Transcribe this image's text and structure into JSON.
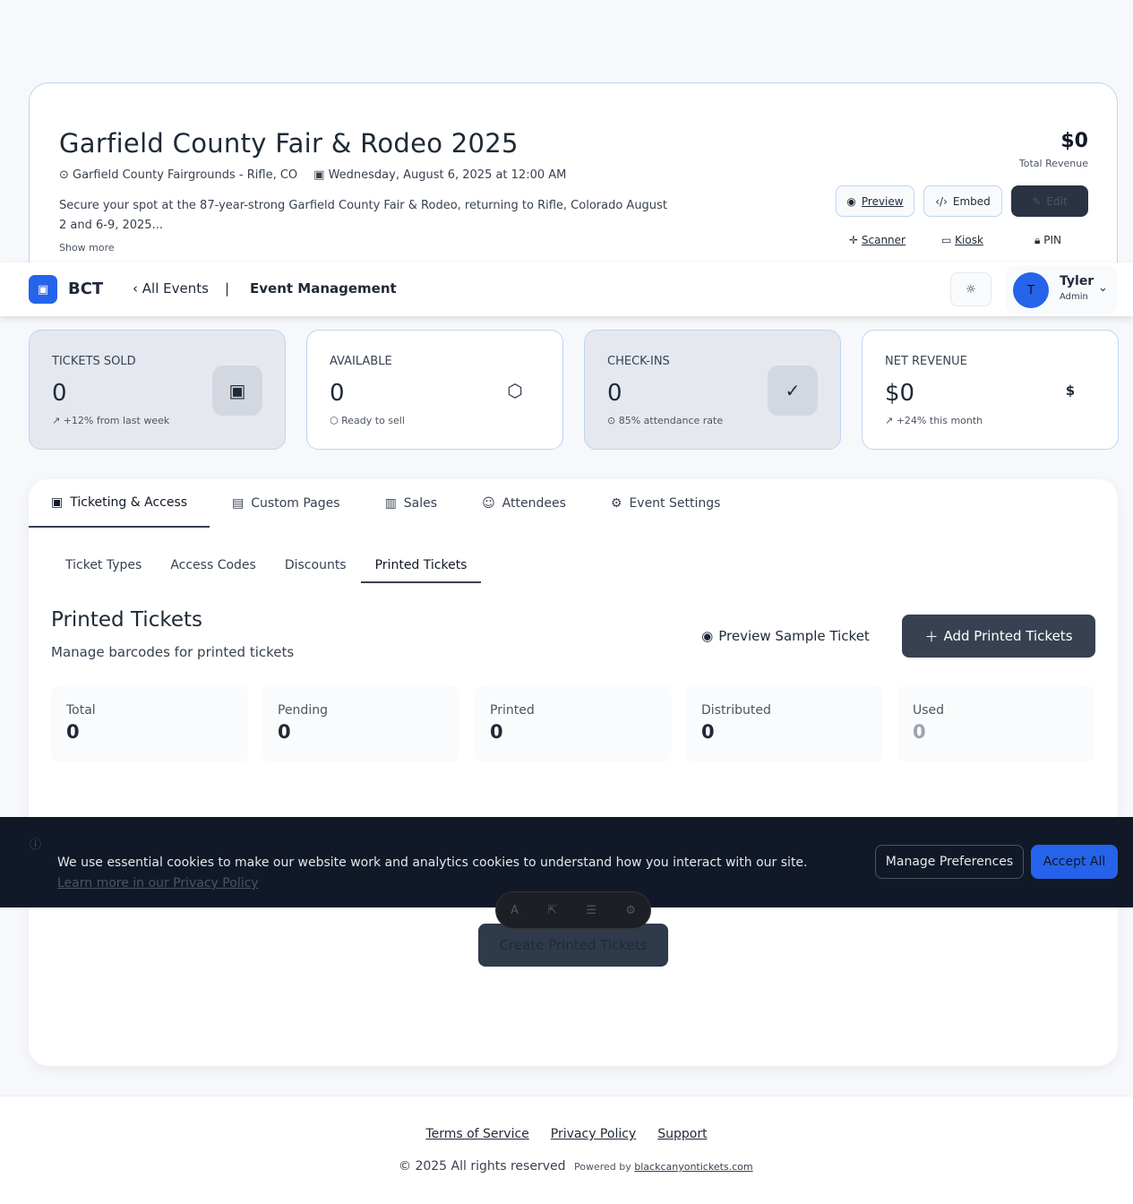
{
  "event": {
    "title": "Garfield County Fair & Rodeo 2025",
    "location": "Garfield County Fairgrounds - Rifle, CO",
    "date": "Wednesday, August 6, 2025 at 12:00 AM",
    "description": "Secure your spot at the 87-year-strong Garfield County Fair & Rodeo, returning to Rifle, Colorado August 2 and 6-9, 2025...",
    "show_more": "Show more",
    "revenue": "$0",
    "revenue_label": "Total Revenue",
    "preview": "Preview",
    "embed": "Embed",
    "edit": "Edit",
    "scanner": "Scanner",
    "kiosk": "Kiosk",
    "pin": "PIN"
  },
  "nav": {
    "brand": "BCT",
    "all_events": "All Events",
    "separator": "|",
    "page": "Event Management",
    "user_initial": "T",
    "user_name": "Tyler",
    "user_role": "Admin"
  },
  "cards": [
    {
      "label": "TICKETS SOLD",
      "value": "0",
      "sub": "+12% from last week",
      "icon": "ticket-icon"
    },
    {
      "label": "AVAILABLE",
      "value": "0",
      "sub": "Ready to sell",
      "icon": "box-icon"
    },
    {
      "label": "CHECK-INS",
      "value": "0",
      "sub": "85% attendance rate",
      "icon": "check-circle-icon"
    },
    {
      "label": "NET REVENUE",
      "value": "$0",
      "sub": "+24% this month",
      "icon": "dollar-icon"
    }
  ],
  "tabs": [
    "Ticketing & Access",
    "Custom Pages",
    "Sales",
    "Attendees",
    "Event Settings"
  ],
  "sub_tabs": [
    "Ticket Types",
    "Access Codes",
    "Discounts",
    "Printed Tickets"
  ],
  "printed": {
    "title": "Printed Tickets",
    "subtitle": "Manage barcodes for printed tickets",
    "preview_btn": "Preview Sample Ticket",
    "add_btn": "Add Printed Tickets",
    "create_btn": "Create Printed Tickets",
    "stats": [
      {
        "label": "Total",
        "value": "0"
      },
      {
        "label": "Pending",
        "value": "0"
      },
      {
        "label": "Printed",
        "value": "0"
      },
      {
        "label": "Distributed",
        "value": "0"
      },
      {
        "label": "Used",
        "value": "0"
      }
    ]
  },
  "cookie": {
    "text": "We use essential cookies to make our website work and analytics cookies to understand how you interact with our site.",
    "link": "Learn more in our Privacy Policy",
    "manage": "Manage Preferences",
    "accept": "Accept All"
  },
  "footer": {
    "links": [
      "Terms of Service",
      "Privacy Policy",
      "Support"
    ],
    "copyright": "© 2025 All rights reserved",
    "powered": "Powered by",
    "powered_link": "blackcanyontickets.com"
  }
}
